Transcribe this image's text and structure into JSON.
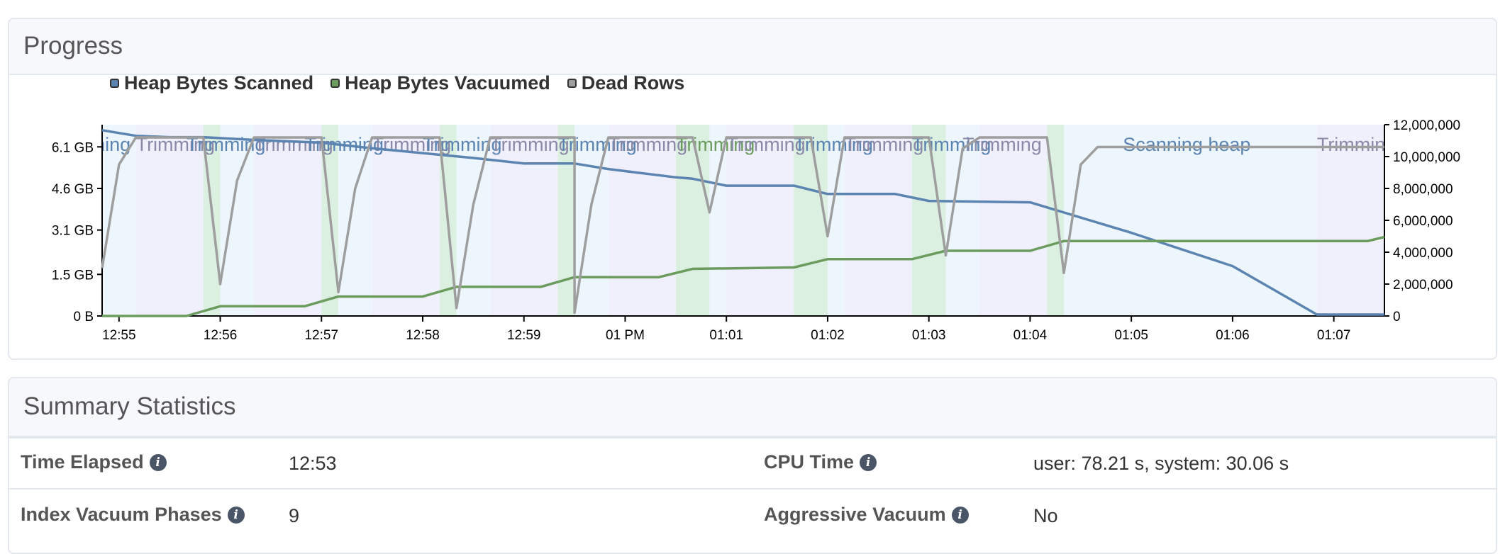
{
  "progress": {
    "title": "Progress",
    "legend": [
      {
        "label": "Heap Bytes Scanned",
        "color": "#5b84b1"
      },
      {
        "label": "Heap Bytes Vacuumed",
        "color": "#6b9c5e"
      },
      {
        "label": "Dead Rows",
        "color": "#9e9e9e"
      }
    ]
  },
  "chart_data": {
    "type": "line",
    "x_ticks": [
      "12:55",
      "12:56",
      "12:57",
      "12:58",
      "12:59",
      "01 PM",
      "01:01",
      "01:02",
      "01:03",
      "01:04",
      "01:05",
      "01:06",
      "01:07"
    ],
    "x_range": [
      "12:54:50",
      "12:07:30"
    ],
    "y_left": {
      "ticks": [
        "0 B",
        "1.5 GB",
        "3.1 GB",
        "4.6 GB",
        "6.1 GB"
      ],
      "range_gb": [
        0,
        6.1
      ]
    },
    "y_right": {
      "ticks": [
        "0",
        "2,000,000",
        "4,000,000",
        "6,000,000",
        "8,000,000",
        "10,000,000",
        "12,000,000"
      ],
      "range": [
        0,
        12000000
      ]
    },
    "phase_labels": [
      "Trimming",
      "Scanning heap"
    ],
    "series": [
      {
        "name": "Heap Bytes Scanned",
        "axis": "left",
        "points": [
          [
            "12:54:50",
            6.7
          ],
          [
            "12:55:10",
            6.5
          ],
          [
            "12:55:30",
            6.45
          ],
          [
            "12:55:50",
            6.45
          ],
          [
            "12:56:20",
            6.35
          ],
          [
            "12:57:00",
            6.25
          ],
          [
            "12:57:30",
            6.05
          ],
          [
            "12:58:30",
            5.7
          ],
          [
            "12:59:00",
            5.5
          ],
          [
            "12:59:30",
            5.5
          ],
          [
            "12:59:50",
            5.3
          ],
          [
            "13:00:30",
            5.0
          ],
          [
            "13:00:40",
            4.95
          ],
          [
            "13:01:00",
            4.7
          ],
          [
            "13:01:40",
            4.7
          ],
          [
            "13:02:00",
            4.4
          ],
          [
            "13:02:40",
            4.4
          ],
          [
            "13:03:00",
            4.15
          ],
          [
            "13:04:00",
            4.1
          ],
          [
            "13:05:00",
            3.0
          ],
          [
            "13:06:00",
            1.8
          ],
          [
            "13:06:50",
            0.05
          ],
          [
            "13:07:30",
            0.05
          ]
        ]
      },
      {
        "name": "Heap Bytes Vacuumed",
        "axis": "left",
        "points": [
          [
            "12:54:50",
            0
          ],
          [
            "12:55:40",
            0
          ],
          [
            "12:56:00",
            0.35
          ],
          [
            "12:56:50",
            0.35
          ],
          [
            "12:57:10",
            0.7
          ],
          [
            "12:58:00",
            0.7
          ],
          [
            "12:58:20",
            1.05
          ],
          [
            "12:59:10",
            1.05
          ],
          [
            "12:59:30",
            1.4
          ],
          [
            "13:00:20",
            1.4
          ],
          [
            "13:00:40",
            1.7
          ],
          [
            "13:01:40",
            1.75
          ],
          [
            "13:02:00",
            2.05
          ],
          [
            "13:02:50",
            2.05
          ],
          [
            "13:03:10",
            2.35
          ],
          [
            "13:04:00",
            2.35
          ],
          [
            "13:04:20",
            2.7
          ],
          [
            "13:07:20",
            2.7
          ],
          [
            "13:07:30",
            2.85
          ]
        ]
      },
      {
        "name": "Dead Rows",
        "axis": "right",
        "points": [
          [
            "12:54:50",
            3000000
          ],
          [
            "12:55:00",
            9500000
          ],
          [
            "12:55:10",
            11200000
          ],
          [
            "12:55:50",
            11200000
          ],
          [
            "12:56:00",
            2000000
          ],
          [
            "12:56:10",
            8500000
          ],
          [
            "12:56:20",
            11200000
          ],
          [
            "12:57:00",
            11200000
          ],
          [
            "12:57:10",
            1500000
          ],
          [
            "12:57:20",
            8000000
          ],
          [
            "12:57:30",
            11200000
          ],
          [
            "12:58:10",
            11200000
          ],
          [
            "12:58:20",
            500000
          ],
          [
            "12:58:30",
            7000000
          ],
          [
            "12:58:40",
            11200000
          ],
          [
            "12:59:30",
            11200000
          ],
          [
            "12:59:30",
            200000
          ],
          [
            "12:59:40",
            7000000
          ],
          [
            "12:59:50",
            11200000
          ],
          [
            "13:00:40",
            11200000
          ],
          [
            "13:00:50",
            6500000
          ],
          [
            "13:01:00",
            11200000
          ],
          [
            "13:01:50",
            11200000
          ],
          [
            "13:02:00",
            5000000
          ],
          [
            "13:02:10",
            11200000
          ],
          [
            "13:03:00",
            11200000
          ],
          [
            "13:03:10",
            3800000
          ],
          [
            "13:03:20",
            10500000
          ],
          [
            "13:03:30",
            11200000
          ],
          [
            "13:04:10",
            11200000
          ],
          [
            "13:04:20",
            2700000
          ],
          [
            "13:04:30",
            9500000
          ],
          [
            "13:04:40",
            10600000
          ],
          [
            "13:07:30",
            10600000
          ]
        ]
      }
    ],
    "grid": false
  },
  "summary": {
    "title": "Summary Statistics",
    "rows": [
      {
        "label_left": "Time Elapsed",
        "value_left": "12:53",
        "label_right": "CPU Time",
        "value_right": "user: 78.21 s, system: 30.06 s"
      },
      {
        "label_left": "Index Vacuum Phases",
        "value_left": "9",
        "label_right": "Aggressive Vacuum",
        "value_right": "No"
      }
    ]
  }
}
